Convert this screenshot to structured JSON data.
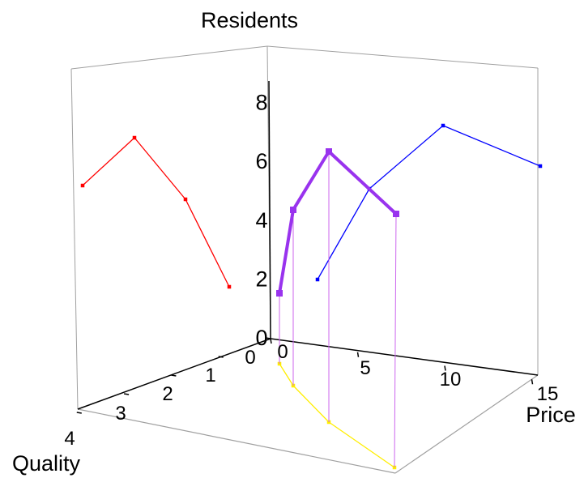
{
  "chart_data": {
    "type": "line",
    "projection": "3d",
    "title": "Residents",
    "axes": {
      "x": {
        "label": "Price",
        "ticks": [
          "0",
          "5",
          "10",
          "15"
        ],
        "range": [
          0,
          15
        ]
      },
      "y": {
        "label": "Quality",
        "ticks": [
          "0",
          "1",
          "2",
          "3",
          "4"
        ],
        "range": [
          0,
          4
        ]
      },
      "z": {
        "label": "",
        "ticks": [
          "0",
          "2",
          "4",
          "6",
          "8"
        ],
        "range": [
          0,
          8
        ]
      }
    },
    "points": [
      {
        "price": 0,
        "quality": 1,
        "residents": 1
      },
      {
        "price": 1,
        "quality": 2,
        "residents": 4
      },
      {
        "price": 5,
        "quality": 3,
        "residents": 6
      },
      {
        "price": 12,
        "quality": 4,
        "residents": 4
      }
    ],
    "projections": {
      "quality_residents_wall": "red",
      "price_residents_wall": "blue",
      "price_quality_floor": "yellow",
      "main_series": "purple"
    },
    "colors": {
      "main": "#9933ee",
      "drop_lines": "#cc66ee",
      "wall_projection": "#ff0000",
      "back_projection": "#0000ff",
      "floor_projection": "#ffee00",
      "box": "#a0a0a0"
    }
  }
}
